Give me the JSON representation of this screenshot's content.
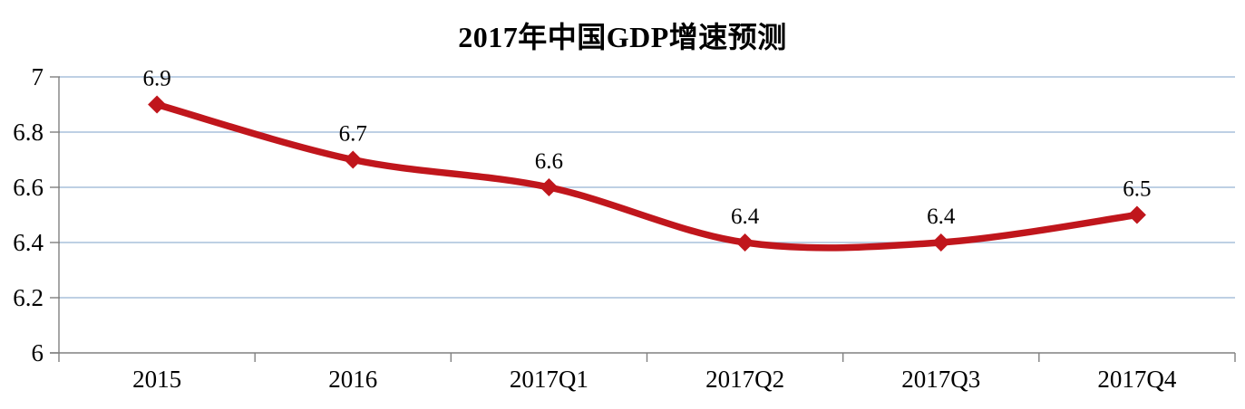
{
  "chart_data": {
    "type": "line",
    "title": "2017年中国GDP增速预测",
    "categories": [
      "2015",
      "2016",
      "2017Q1",
      "2017Q2",
      "2017Q3",
      "2017Q4"
    ],
    "values": [
      6.9,
      6.7,
      6.6,
      6.4,
      6.4,
      6.5
    ],
    "data_labels": [
      "6.9",
      "6.7",
      "6.6",
      "6.4",
      "6.4",
      "6.5"
    ],
    "xlabel": "",
    "ylabel": "",
    "ylim": [
      6,
      7
    ],
    "yticks": [
      6,
      6.2,
      6.4,
      6.6,
      6.8,
      7
    ],
    "ytick_labels": [
      "6",
      "6.2",
      "6.4",
      "6.6",
      "6.8",
      "7"
    ],
    "grid": true,
    "legend_position": "none",
    "line_smooth": true,
    "marker_shape": "diamond",
    "colors": {
      "line": "#C0161C",
      "marker": "#C0161C",
      "gridline": "#A9C1DC",
      "axis": "#808080",
      "text": "#000000",
      "background": "#FFFFFF"
    }
  }
}
